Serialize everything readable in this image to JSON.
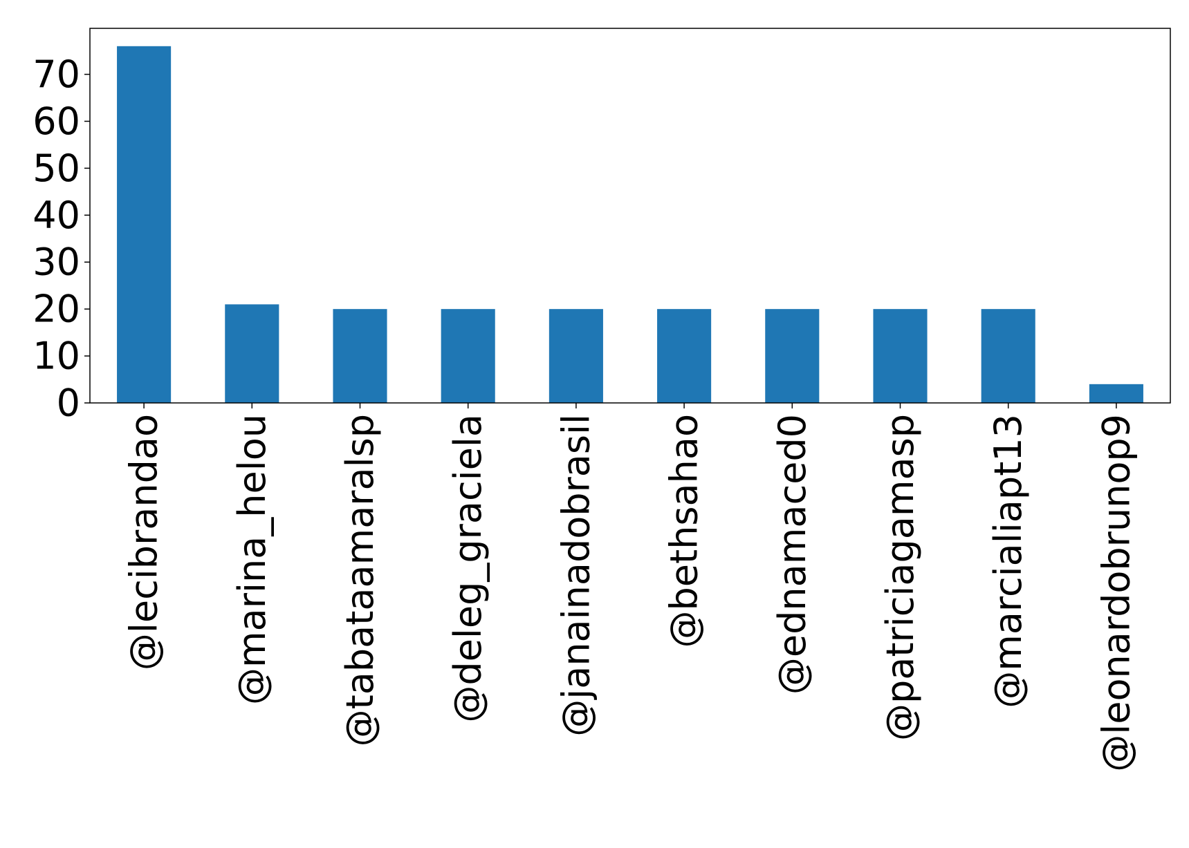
{
  "chart_data": {
    "type": "bar",
    "title": "",
    "xlabel": "",
    "ylabel": "",
    "categories": [
      "@lecibrandao",
      "@marina_helou",
      "@tabataamaralsp",
      "@deleg_graciela",
      "@janainadobrasil",
      "@bethsahao",
      "@ednamaced0",
      "@patriciagamasp",
      "@marcialiapt13",
      "@leonardobrunop9"
    ],
    "values": [
      76,
      21,
      20,
      20,
      20,
      20,
      20,
      20,
      20,
      4
    ],
    "ylim": [
      0,
      80
    ],
    "yticks": [
      0,
      10,
      20,
      30,
      40,
      50,
      60,
      70
    ],
    "grid": false,
    "legend": "none",
    "bar_color": "#1f77b4",
    "axis_color": "#000000"
  }
}
